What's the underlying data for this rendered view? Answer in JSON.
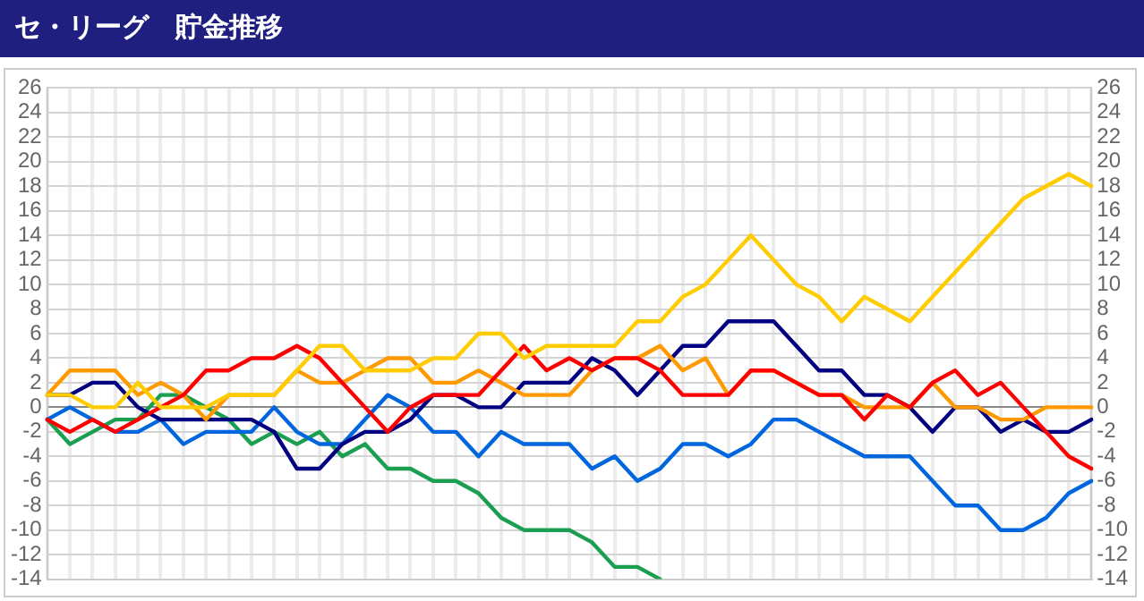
{
  "chart_data": {
    "type": "line",
    "title": "セ・リーグ　貯金推移",
    "categories": [
      null,
      null,
      null,
      null,
      null,
      null,
      null,
      null,
      null,
      null,
      null,
      null,
      null,
      null,
      null,
      null,
      null,
      null,
      null,
      null,
      null,
      null,
      null,
      null,
      null,
      null,
      null,
      null,
      null,
      null,
      null,
      null,
      null,
      null,
      null,
      null,
      null,
      null,
      null,
      null,
      null,
      null,
      null,
      null,
      null,
      null,
      null
    ],
    "series": [
      {
        "color": "#ffcc00",
        "values": [
          1,
          1,
          0,
          0,
          2,
          0,
          0,
          0,
          1,
          1,
          1,
          3,
          5,
          5,
          3,
          3,
          3,
          4,
          4,
          6,
          6,
          4,
          5,
          5,
          5,
          5,
          7,
          7,
          9,
          10,
          12,
          14,
          12,
          10,
          9,
          7,
          9,
          8,
          7,
          9,
          11,
          13,
          15,
          17,
          18,
          19,
          18
        ]
      },
      {
        "color": "#ff0000",
        "values": [
          -1,
          -2,
          -1,
          -2,
          -1,
          0,
          1,
          3,
          3,
          4,
          4,
          5,
          4,
          2,
          0,
          -2,
          0,
          1,
          1,
          1,
          3,
          5,
          3,
          4,
          3,
          4,
          4,
          3,
          1,
          1,
          1,
          3,
          3,
          2,
          1,
          1,
          -1,
          1,
          0,
          2,
          3,
          1,
          2,
          0,
          -2,
          -4,
          -5
        ]
      },
      {
        "color": "#ff9900",
        "values": [
          1,
          3,
          3,
          3,
          1,
          2,
          1,
          -1,
          1,
          1,
          1,
          3,
          2,
          2,
          3,
          4,
          4,
          2,
          2,
          3,
          2,
          1,
          1,
          1,
          3,
          4,
          4,
          5,
          3,
          4,
          1,
          3,
          3,
          2,
          1,
          1,
          0,
          0,
          0,
          2,
          0,
          0,
          -1,
          -1,
          0,
          0,
          0
        ]
      },
      {
        "color": "#000080",
        "values": [
          1,
          1,
          2,
          2,
          0,
          -1,
          -1,
          -1,
          -1,
          -1,
          -2,
          -5,
          -5,
          -3,
          -2,
          -2,
          -1,
          1,
          1,
          0,
          0,
          2,
          2,
          2,
          4,
          3,
          1,
          3,
          5,
          5,
          7,
          7,
          7,
          5,
          3,
          3,
          1,
          1,
          0,
          -2,
          0,
          0,
          -2,
          -1,
          -2,
          -2,
          -1
        ]
      },
      {
        "color": "#0066dd",
        "values": [
          -1,
          0,
          -1,
          -2,
          -2,
          -1,
          -3,
          -2,
          -2,
          -2,
          0,
          -2,
          -3,
          -3,
          -1,
          1,
          0,
          -2,
          -2,
          -4,
          -2,
          -3,
          -3,
          -3,
          -5,
          -4,
          -6,
          -5,
          -3,
          -3,
          -4,
          -3,
          -1,
          -1,
          -2,
          -3,
          -4,
          -4,
          -4,
          -6,
          -8,
          -8,
          -10,
          -10,
          -9,
          -7,
          -6
        ]
      },
      {
        "color": "#1a9e50",
        "values": [
          -1,
          -3,
          -2,
          -1,
          -1,
          1,
          1,
          0,
          -1,
          -3,
          -2,
          -3,
          -2,
          -4,
          -3,
          -5,
          -5,
          -6,
          -6,
          -7,
          -9,
          -10,
          -10,
          -10,
          -11,
          -13,
          -13,
          -14,
          null,
          null,
          null,
          null,
          null,
          null,
          null,
          null,
          null,
          null,
          null,
          null,
          null,
          null,
          null,
          null,
          null,
          null,
          null
        ]
      }
    ],
    "ylim": [
      -14,
      26
    ],
    "yticks": [
      -14,
      -12,
      -10,
      -8,
      -6,
      -4,
      -2,
      0,
      2,
      4,
      6,
      8,
      10,
      12,
      14,
      16,
      18,
      20,
      22,
      24,
      26
    ],
    "y2lim": [
      -14,
      26
    ],
    "y2ticks": [
      -14,
      -12,
      -10,
      -8,
      -6,
      -4,
      -2,
      0,
      2,
      4,
      6,
      8,
      10,
      12,
      14,
      16,
      18,
      20,
      22,
      24,
      26
    ],
    "grid": true,
    "legend": false,
    "marker": "none",
    "line_style": "solid",
    "tick_labels": "y"
  }
}
